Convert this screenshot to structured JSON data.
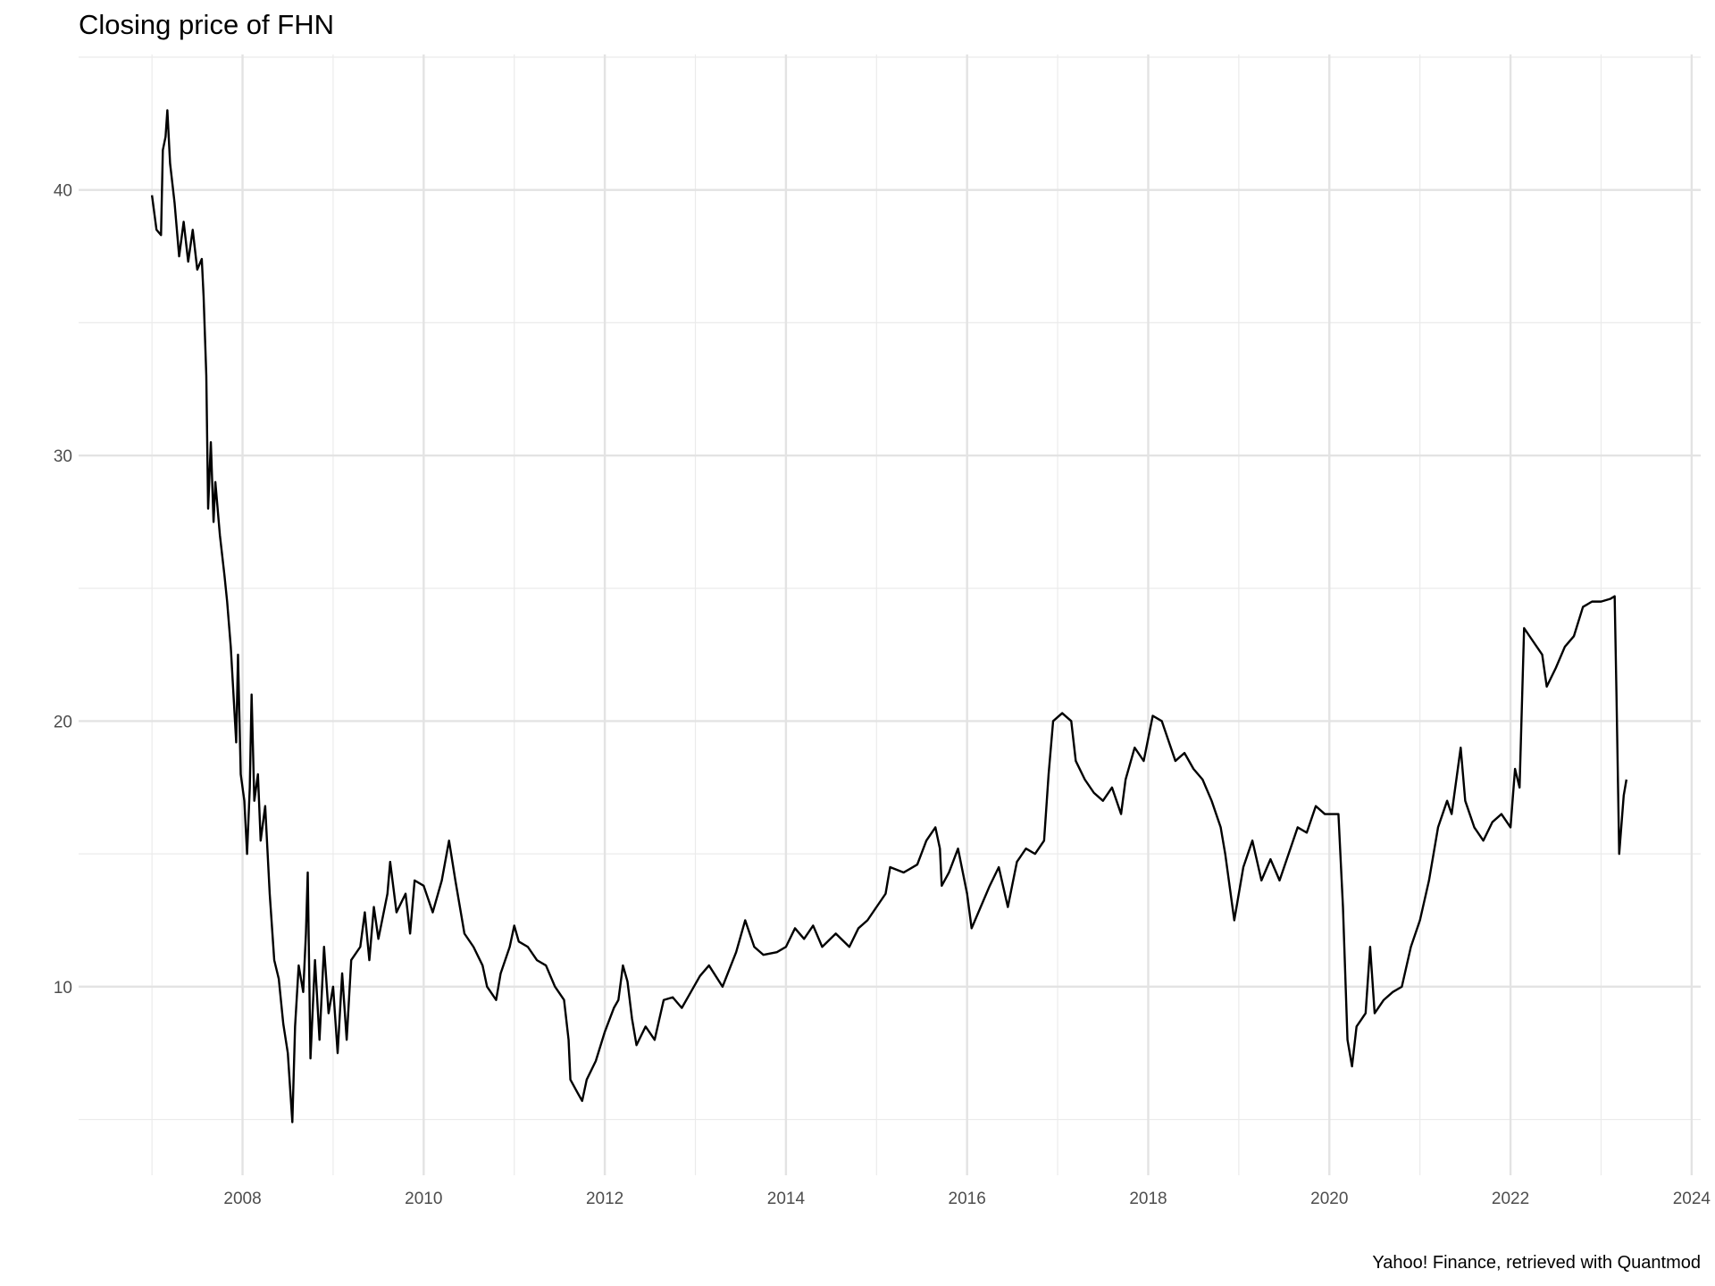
{
  "chart_data": {
    "type": "line",
    "title": "Closing price of FHN",
    "caption": "Yahoo! Finance, retrieved with Quantmod",
    "color": "#000000",
    "grid": true,
    "xlim": [
      2006.19,
      2024.1
    ],
    "xticks": [
      2008,
      2010,
      2012,
      2014,
      2016,
      2018,
      2020,
      2022,
      2024
    ],
    "xminorticks": [
      2007,
      2009,
      2011,
      2013,
      2015,
      2017,
      2019,
      2021,
      2023
    ],
    "ylim": [
      2.9,
      45.1
    ],
    "yticks": [
      10,
      20,
      30,
      40
    ],
    "yminorticks": [
      5,
      15,
      25,
      35,
      45
    ],
    "x": [
      2007.0,
      2007.05,
      2007.1,
      2007.12,
      2007.15,
      2007.17,
      2007.2,
      2007.25,
      2007.3,
      2007.35,
      2007.4,
      2007.45,
      2007.5,
      2007.55,
      2007.57,
      2007.6,
      2007.62,
      2007.65,
      2007.68,
      2007.7,
      2007.75,
      2007.8,
      2007.83,
      2007.87,
      2007.9,
      2007.93,
      2007.95,
      2007.98,
      2008.02,
      2008.05,
      2008.08,
      2008.1,
      2008.13,
      2008.17,
      2008.2,
      2008.25,
      2008.3,
      2008.35,
      2008.4,
      2008.45,
      2008.5,
      2008.55,
      2008.58,
      2008.62,
      2008.67,
      2008.7,
      2008.72,
      2008.75,
      2008.8,
      2008.85,
      2008.9,
      2008.95,
      2009.0,
      2009.05,
      2009.1,
      2009.15,
      2009.2,
      2009.3,
      2009.35,
      2009.4,
      2009.45,
      2009.5,
      2009.6,
      2009.63,
      2009.7,
      2009.8,
      2009.85,
      2009.9,
      2010.0,
      2010.1,
      2010.2,
      2010.28,
      2010.35,
      2010.45,
      2010.55,
      2010.65,
      2010.7,
      2010.8,
      2010.85,
      2010.95,
      2011.0,
      2011.05,
      2011.15,
      2011.25,
      2011.35,
      2011.45,
      2011.55,
      2011.6,
      2011.62,
      2011.7,
      2011.75,
      2011.8,
      2011.9,
      2012.0,
      2012.1,
      2012.15,
      2012.2,
      2012.25,
      2012.3,
      2012.35,
      2012.45,
      2012.55,
      2012.65,
      2012.75,
      2012.85,
      2012.95,
      2013.05,
      2013.15,
      2013.3,
      2013.45,
      2013.55,
      2013.65,
      2013.75,
      2013.9,
      2014.0,
      2014.1,
      2014.2,
      2014.3,
      2014.4,
      2014.55,
      2014.7,
      2014.8,
      2014.9,
      2015.0,
      2015.1,
      2015.15,
      2015.3,
      2015.45,
      2015.55,
      2015.65,
      2015.7,
      2015.72,
      2015.8,
      2015.9,
      2016.0,
      2016.05,
      2016.15,
      2016.25,
      2016.35,
      2016.45,
      2016.55,
      2016.65,
      2016.75,
      2016.85,
      2016.9,
      2016.95,
      2017.05,
      2017.15,
      2017.2,
      2017.3,
      2017.4,
      2017.5,
      2017.6,
      2017.7,
      2017.75,
      2017.85,
      2017.95,
      2018.05,
      2018.15,
      2018.2,
      2018.3,
      2018.4,
      2018.5,
      2018.6,
      2018.7,
      2018.8,
      2018.85,
      2018.95,
      2019.05,
      2019.15,
      2019.25,
      2019.35,
      2019.45,
      2019.55,
      2019.65,
      2019.75,
      2019.85,
      2019.95,
      2020.1,
      2020.15,
      2020.2,
      2020.25,
      2020.3,
      2020.4,
      2020.45,
      2020.5,
      2020.6,
      2020.7,
      2020.8,
      2020.9,
      2021.0,
      2021.1,
      2021.2,
      2021.3,
      2021.35,
      2021.45,
      2021.5,
      2021.6,
      2021.7,
      2021.8,
      2021.9,
      2022.0,
      2022.05,
      2022.1,
      2022.15,
      2022.25,
      2022.35,
      2022.4,
      2022.5,
      2022.6,
      2022.7,
      2022.8,
      2022.9,
      2023.0,
      2023.1,
      2023.15,
      2023.17,
      2023.2,
      2023.25,
      2023.28
    ],
    "values": [
      39.8,
      38.5,
      38.3,
      41.5,
      42.0,
      43.0,
      41.0,
      39.5,
      37.5,
      38.8,
      37.3,
      38.5,
      37.0,
      37.4,
      36.0,
      33.0,
      28.0,
      30.5,
      27.5,
      29.0,
      27.0,
      25.5,
      24.5,
      22.8,
      21.0,
      19.2,
      22.5,
      18.0,
      17.0,
      15.0,
      17.5,
      21.0,
      17.0,
      18.0,
      15.5,
      16.8,
      13.5,
      11.0,
      10.3,
      8.6,
      7.5,
      4.9,
      8.5,
      10.8,
      9.8,
      12.0,
      14.3,
      7.3,
      11.0,
      8.0,
      11.5,
      9.0,
      10.0,
      7.5,
      10.5,
      8.0,
      11.0,
      11.5,
      12.8,
      11.0,
      13.0,
      11.8,
      13.5,
      14.7,
      12.8,
      13.5,
      12.0,
      14.0,
      13.8,
      12.8,
      14.0,
      15.5,
      14.0,
      12.0,
      11.5,
      10.8,
      10.0,
      9.5,
      10.5,
      11.5,
      12.3,
      11.7,
      11.5,
      11.0,
      10.8,
      10.0,
      9.5,
      8.0,
      6.5,
      6.0,
      5.7,
      6.5,
      7.2,
      8.3,
      9.2,
      9.5,
      10.8,
      10.2,
      8.8,
      7.8,
      8.5,
      8.0,
      9.5,
      9.6,
      9.2,
      9.8,
      10.4,
      10.8,
      10.0,
      11.3,
      12.5,
      11.5,
      11.2,
      11.3,
      11.5,
      12.2,
      11.8,
      12.3,
      11.5,
      12.0,
      11.5,
      12.2,
      12.5,
      13.0,
      13.5,
      14.5,
      14.3,
      14.6,
      15.5,
      16.0,
      15.2,
      13.8,
      14.3,
      15.2,
      13.5,
      12.2,
      13.0,
      13.8,
      14.5,
      13.0,
      14.7,
      15.2,
      15.0,
      15.5,
      18.0,
      20.0,
      20.3,
      20.0,
      18.5,
      17.8,
      17.3,
      17.0,
      17.5,
      16.5,
      17.8,
      19.0,
      18.5,
      20.2,
      20.0,
      19.5,
      18.5,
      18.8,
      18.2,
      17.8,
      17.0,
      16.0,
      15.0,
      12.5,
      14.5,
      15.5,
      14.0,
      14.8,
      14.0,
      15.0,
      16.0,
      15.8,
      16.8,
      16.5,
      16.5,
      13.0,
      8.0,
      7.0,
      8.5,
      9.0,
      11.5,
      9.0,
      9.5,
      9.8,
      10.0,
      11.5,
      12.5,
      14.0,
      16.0,
      17.0,
      16.5,
      19.0,
      17.0,
      16.0,
      15.5,
      16.2,
      16.5,
      16.0,
      18.2,
      17.5,
      23.5,
      23.0,
      22.5,
      21.3,
      22.0,
      22.8,
      23.2,
      24.3,
      24.5,
      24.5,
      24.6,
      24.7,
      21.0,
      15.0,
      17.2,
      17.8
    ]
  }
}
